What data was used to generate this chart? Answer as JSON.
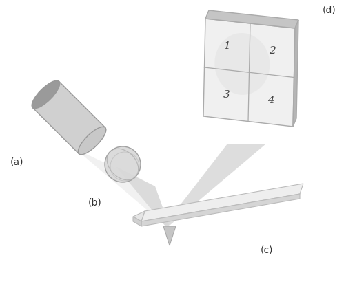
{
  "bg_color": "#ffffff",
  "label_color": "#333333",
  "laser_body_face": "#cccccc",
  "laser_body_edge": "#999999",
  "laser_end_face": "#aaaaaa",
  "lens_face": "#d0d0d0",
  "lens_edge": "#888888",
  "beam_fill": "#d8d8d8",
  "beam_edge": "none",
  "cant_top_face": "#efefef",
  "cant_side_face": "#d0d0d0",
  "cant_edge": "#aaaaaa",
  "tip_face": "#c0c0c0",
  "det_face": "#f2f2f2",
  "det_top_face": "#c8c8c8",
  "det_right_face": "#b8b8b8",
  "det_edge": "#aaaaaa",
  "quad_div_color": "#aaaaaa",
  "label_a": "(a)",
  "label_b": "(b)",
  "label_c": "(c)",
  "label_d": "(d)",
  "quad_labels": [
    "1",
    "2",
    "3",
    "4"
  ],
  "label_fontsize": 10
}
